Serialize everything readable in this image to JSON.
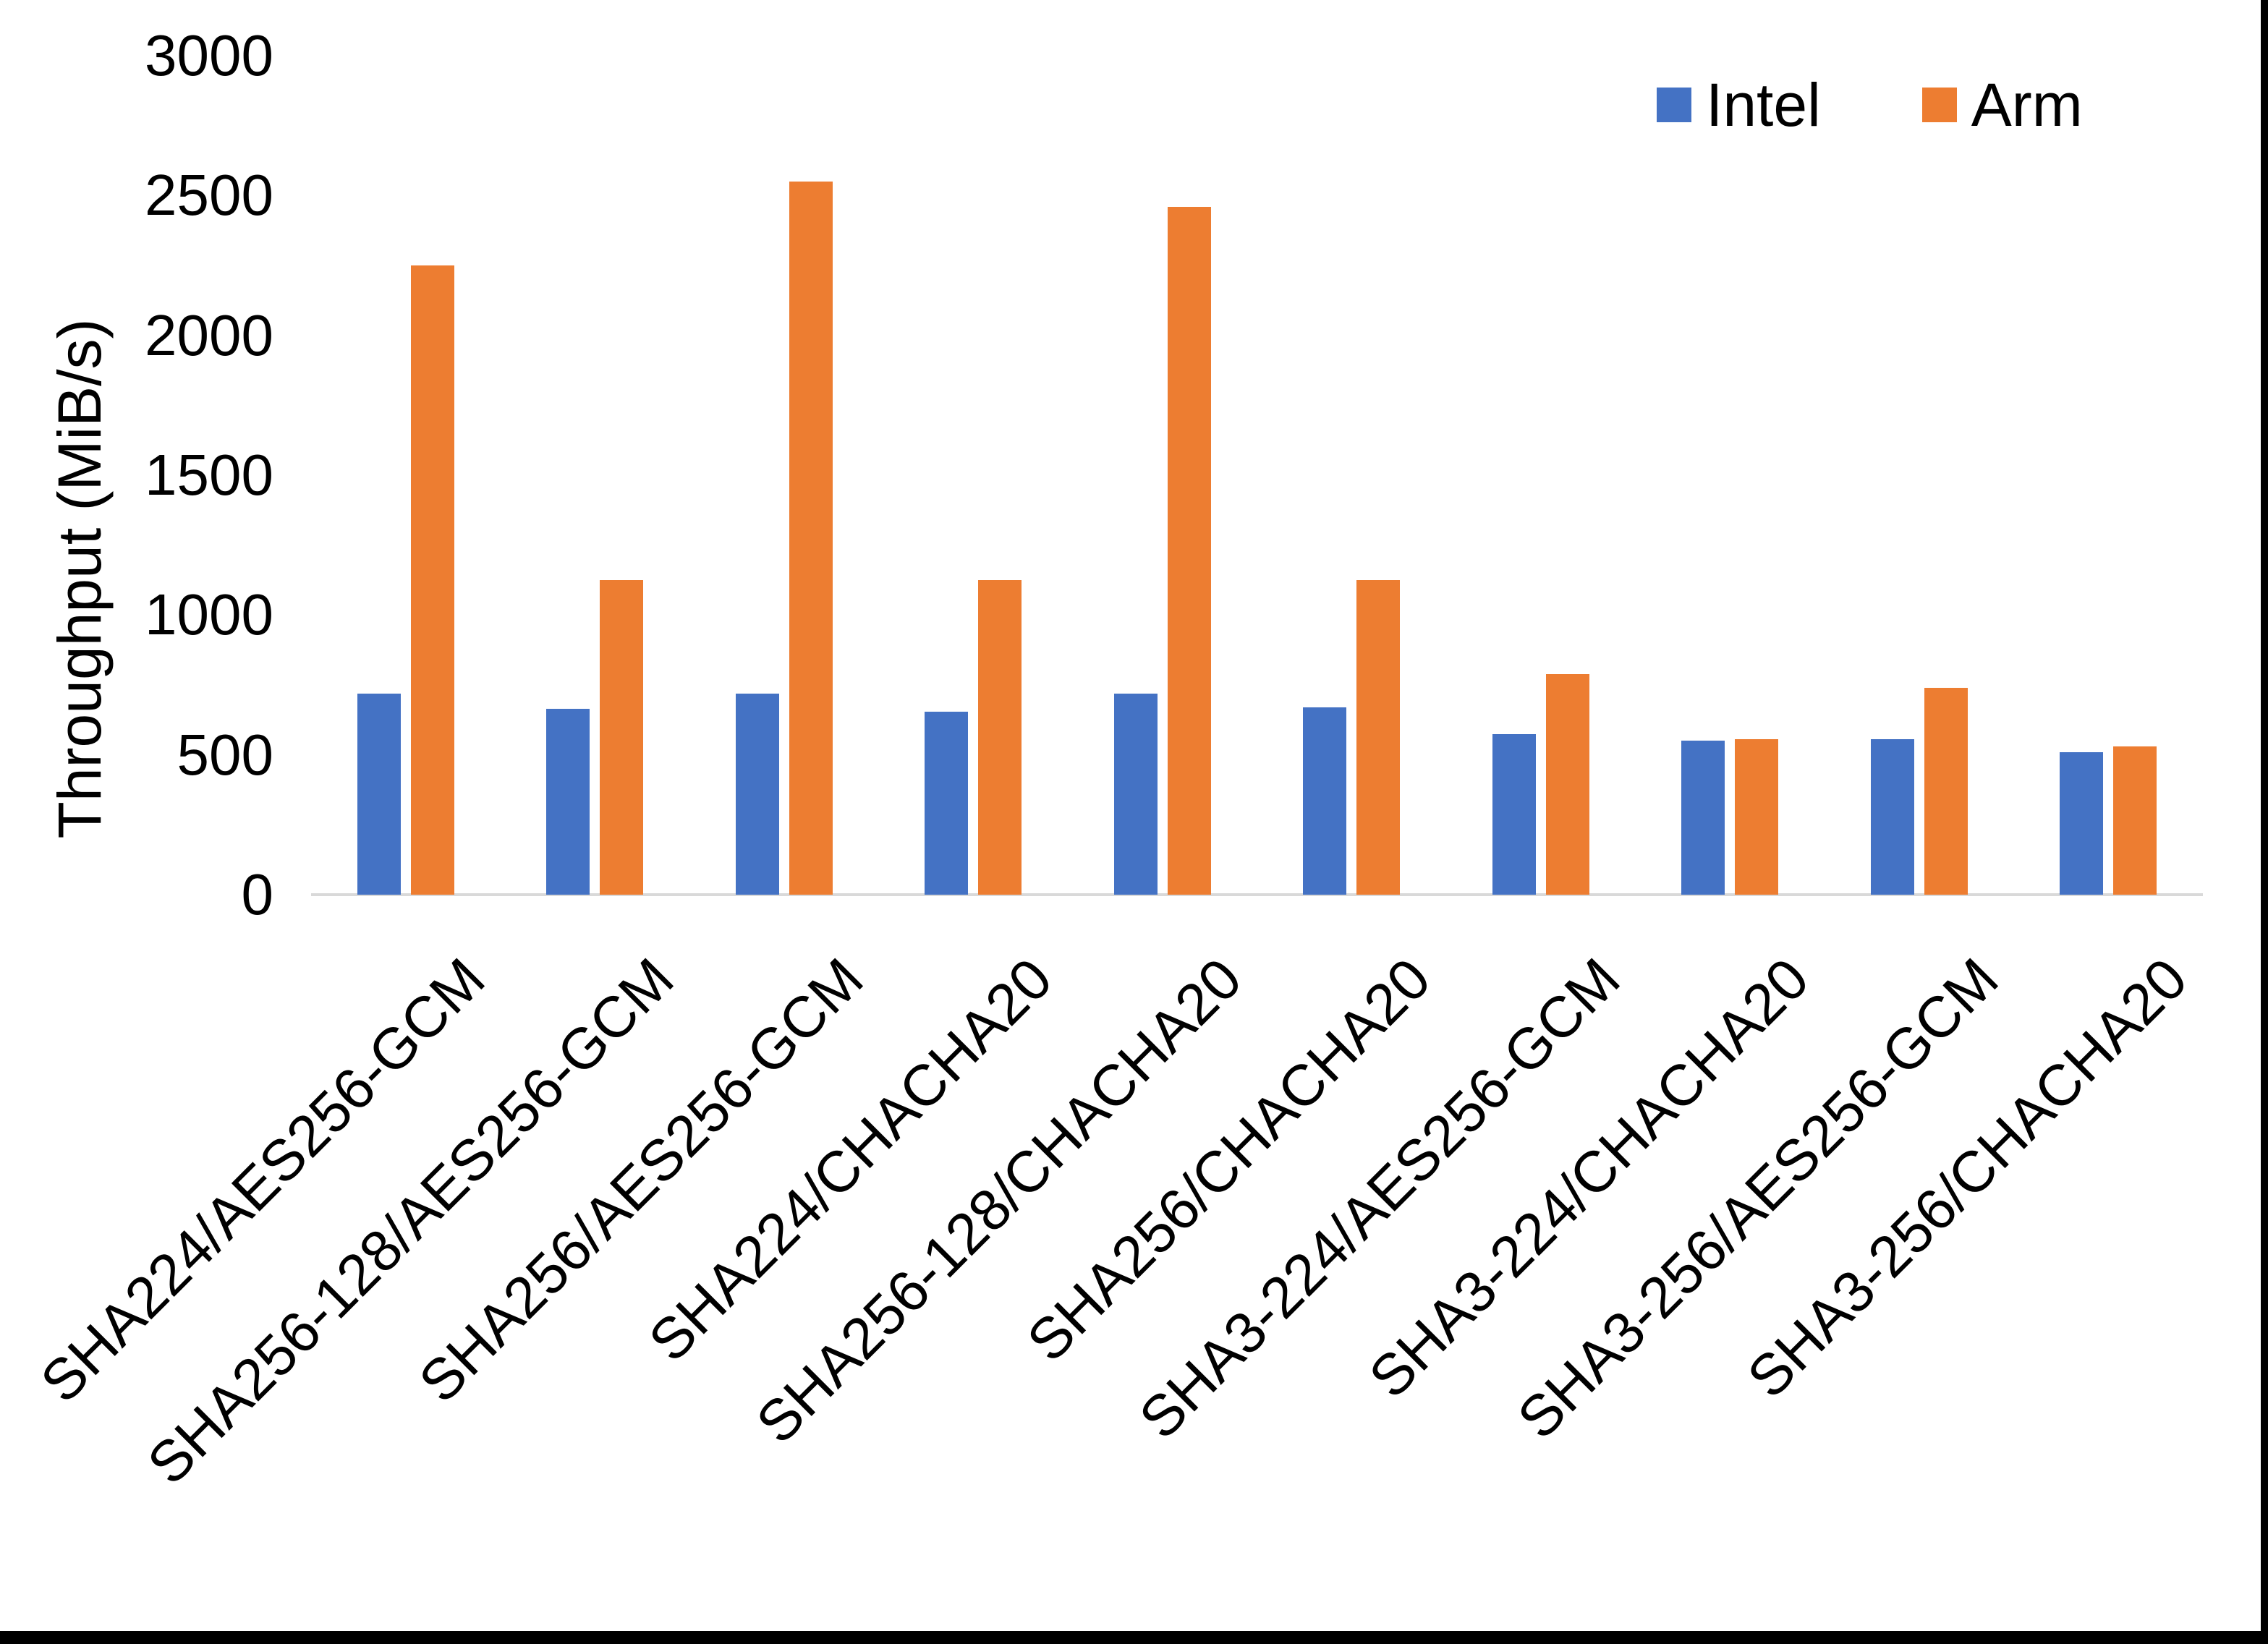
{
  "chart_data": {
    "type": "bar",
    "title": "",
    "ylabel": "Throughput (MiB/s)",
    "xlabel": "",
    "ylim": [
      0,
      3000
    ],
    "yticks": [
      0,
      500,
      1000,
      1500,
      2000,
      2500,
      3000
    ],
    "grid": false,
    "legend_position": "top-right",
    "categories": [
      "SHA224/AES256-GCM",
      "SHA256-128/AES256-GCM",
      "SHA256/AES256-GCM",
      "SHA224/CHACHA20",
      "SHA256-128/CHACHA20",
      "SHA256/CHACHA20",
      "SHA3-224/AES256-GCM",
      "SHA3-224/CHACHA20",
      "SHA3-256/AES256-GCM",
      "SHA3-256/CHACHA20"
    ],
    "series": [
      {
        "name": "Intel",
        "color": "#4472C4",
        "values": [
          720,
          665,
          720,
          655,
          720,
          670,
          575,
          550,
          555,
          510
        ]
      },
      {
        "name": "Arm",
        "color": "#ED7D31",
        "values": [
          2250,
          1125,
          2550,
          1125,
          2460,
          1125,
          790,
          555,
          740,
          530
        ]
      }
    ],
    "colors": {
      "axis_line": "#D9D9D9",
      "text": "#000000",
      "background": "#FFFFFF",
      "frame_border": "#000000"
    }
  }
}
